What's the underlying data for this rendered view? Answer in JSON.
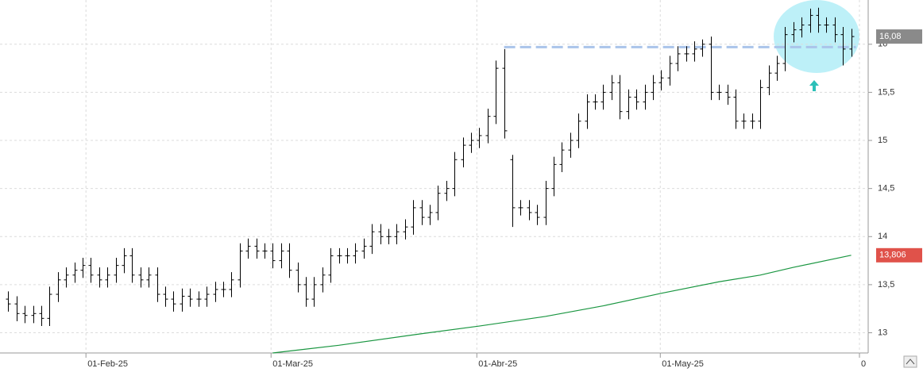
{
  "chart_data": {
    "type": "ohlc",
    "color": "#000000",
    "open": [
      13.35,
      13.3,
      13.2,
      13.18,
      13.2,
      13.15,
      13.4,
      13.55,
      13.6,
      13.65,
      13.7,
      13.6,
      13.55,
      13.6,
      13.7,
      13.8,
      13.6,
      13.55,
      13.6,
      13.4,
      13.35,
      13.3,
      13.38,
      13.35,
      13.35,
      13.4,
      13.45,
      13.45,
      13.55,
      13.85,
      13.9,
      13.85,
      13.85,
      13.75,
      13.85,
      13.65,
      13.5,
      13.35,
      13.5,
      13.6,
      13.8,
      13.8,
      13.8,
      13.85,
      13.9,
      14.05,
      14,
      14,
      14.05,
      14.1,
      14.3,
      14.2,
      14.25,
      14.45,
      14.5,
      14.8,
      14.95,
      15,
      15.05,
      15.25,
      15.75,
      14.8,
      14.3,
      14.3,
      14.25,
      14.2,
      14.5,
      14.75,
      14.9,
      15,
      15.2,
      15.4,
      15.4,
      15.5,
      15.6,
      15.3,
      15.45,
      15.4,
      15.5,
      15.6,
      15.65,
      15.8,
      15.9,
      15.9,
      15.95,
      16,
      15.5,
      15.5,
      15.45,
      15.2,
      15.2,
      15.2,
      15.55,
      15.7,
      15.8,
      16.1,
      16.15,
      16.2,
      16.3,
      16.2,
      16.2,
      16.1,
      15.95
    ],
    "high": [
      13.43,
      13.38,
      13.28,
      13.28,
      13.28,
      13.48,
      13.63,
      13.68,
      13.73,
      13.78,
      13.78,
      13.68,
      13.68,
      13.78,
      13.88,
      13.88,
      13.68,
      13.68,
      13.68,
      13.48,
      13.43,
      13.46,
      13.46,
      13.43,
      13.48,
      13.53,
      13.53,
      13.63,
      13.93,
      13.98,
      13.98,
      13.93,
      13.93,
      13.93,
      13.93,
      13.73,
      13.58,
      13.58,
      13.68,
      13.88,
      13.88,
      13.88,
      13.93,
      13.98,
      14.13,
      14.13,
      14.08,
      14.13,
      14.18,
      14.38,
      14.38,
      14.33,
      14.53,
      14.58,
      14.88,
      15.03,
      15.08,
      15.13,
      15.33,
      15.83,
      15.95,
      14.85,
      14.38,
      14.38,
      14.33,
      14.58,
      14.83,
      14.98,
      15.08,
      15.28,
      15.48,
      15.48,
      15.58,
      15.68,
      15.68,
      15.53,
      15.53,
      15.58,
      15.68,
      15.73,
      15.88,
      15.98,
      15.98,
      16.03,
      16.05,
      16.08,
      15.58,
      15.58,
      15.53,
      15.28,
      15.28,
      15.63,
      15.78,
      15.88,
      16.18,
      16.23,
      16.28,
      16.37,
      16.38,
      16.28,
      16.28,
      16.18,
      16.16
    ],
    "low": [
      13.22,
      13.12,
      13.1,
      13.1,
      13.07,
      13.07,
      13.32,
      13.47,
      13.52,
      13.57,
      13.52,
      13.47,
      13.47,
      13.52,
      13.62,
      13.52,
      13.47,
      13.47,
      13.32,
      13.27,
      13.22,
      13.22,
      13.27,
      13.27,
      13.27,
      13.32,
      13.37,
      13.37,
      13.47,
      13.77,
      13.77,
      13.77,
      13.67,
      13.67,
      13.57,
      13.42,
      13.27,
      13.27,
      13.42,
      13.52,
      13.72,
      13.72,
      13.72,
      13.77,
      13.82,
      13.92,
      13.92,
      13.92,
      13.97,
      14.02,
      14.12,
      14.12,
      14.17,
      14.37,
      14.42,
      14.72,
      14.87,
      14.92,
      14.97,
      15.17,
      15.02,
      14.1,
      14.22,
      14.17,
      14.12,
      14.12,
      14.42,
      14.67,
      14.82,
      14.92,
      15.12,
      15.32,
      15.32,
      15.42,
      15.22,
      15.22,
      15.32,
      15.32,
      15.42,
      15.52,
      15.57,
      15.72,
      15.82,
      15.82,
      15.87,
      15.42,
      15.42,
      15.37,
      15.12,
      15.12,
      15.12,
      15.12,
      15.47,
      15.62,
      15.72,
      16.02,
      16.07,
      16.12,
      16.12,
      16.12,
      16.02,
      15.78,
      15.87
    ],
    "close": [
      13.3,
      13.2,
      13.18,
      13.2,
      13.15,
      13.4,
      13.55,
      13.6,
      13.65,
      13.7,
      13.6,
      13.55,
      13.6,
      13.7,
      13.8,
      13.6,
      13.55,
      13.6,
      13.4,
      13.35,
      13.3,
      13.38,
      13.35,
      13.35,
      13.4,
      13.45,
      13.45,
      13.55,
      13.85,
      13.9,
      13.85,
      13.85,
      13.75,
      13.85,
      13.65,
      13.5,
      13.35,
      13.5,
      13.6,
      13.8,
      13.8,
      13.8,
      13.85,
      13.9,
      14.05,
      14,
      14,
      14.05,
      14.1,
      14.3,
      14.2,
      14.25,
      14.45,
      14.5,
      14.8,
      14.95,
      15,
      15.05,
      15.25,
      15.75,
      15.1,
      14.3,
      14.3,
      14.25,
      14.2,
      14.5,
      14.75,
      14.9,
      15,
      15.2,
      15.4,
      15.4,
      15.5,
      15.6,
      15.3,
      15.45,
      15.4,
      15.5,
      15.6,
      15.65,
      15.8,
      15.9,
      15.9,
      15.95,
      16,
      15.5,
      15.5,
      15.45,
      15.2,
      15.2,
      15.2,
      15.55,
      15.7,
      15.8,
      16.1,
      16.15,
      16.2,
      16.3,
      16.2,
      16.2,
      16.1,
      15.95,
      16.08
    ],
    "moving_average": {
      "color": "#1a9641",
      "x": [
        32,
        40,
        50,
        57,
        65,
        72,
        79,
        86,
        91,
        95,
        102
      ],
      "values": [
        12.79,
        12.87,
        12.99,
        13.07,
        13.17,
        13.28,
        13.41,
        13.53,
        13.6,
        13.68,
        13.806
      ]
    },
    "resistance": {
      "value": 15.97,
      "from": 60,
      "to": 102,
      "color": "#aac4ea"
    },
    "price_tags": [
      {
        "value": 16.08,
        "label": "16,08",
        "color": "#8a8a8a"
      },
      {
        "value": 13.806,
        "label": "13,806",
        "color": "#e0524a"
      }
    ],
    "xlim": [
      -1,
      103
    ],
    "ylim": [
      12.79,
      16.46
    ],
    "xticks": [
      {
        "value": 9.4,
        "label": "01-Feb-25"
      },
      {
        "value": 31.8,
        "label": "01-Mar-25"
      },
      {
        "value": 56.7,
        "label": "01-Abr-25"
      },
      {
        "value": 78.9,
        "label": "01-May-25"
      },
      {
        "value": 103,
        "label": "0"
      }
    ],
    "yticks": [
      13,
      {
        "value": 13.5,
        "label": "13,5"
      },
      14,
      {
        "value": 14.5,
        "label": "14,5"
      },
      15,
      {
        "value": 15.5,
        "label": "15,5"
      },
      16
    ],
    "grid": true
  }
}
